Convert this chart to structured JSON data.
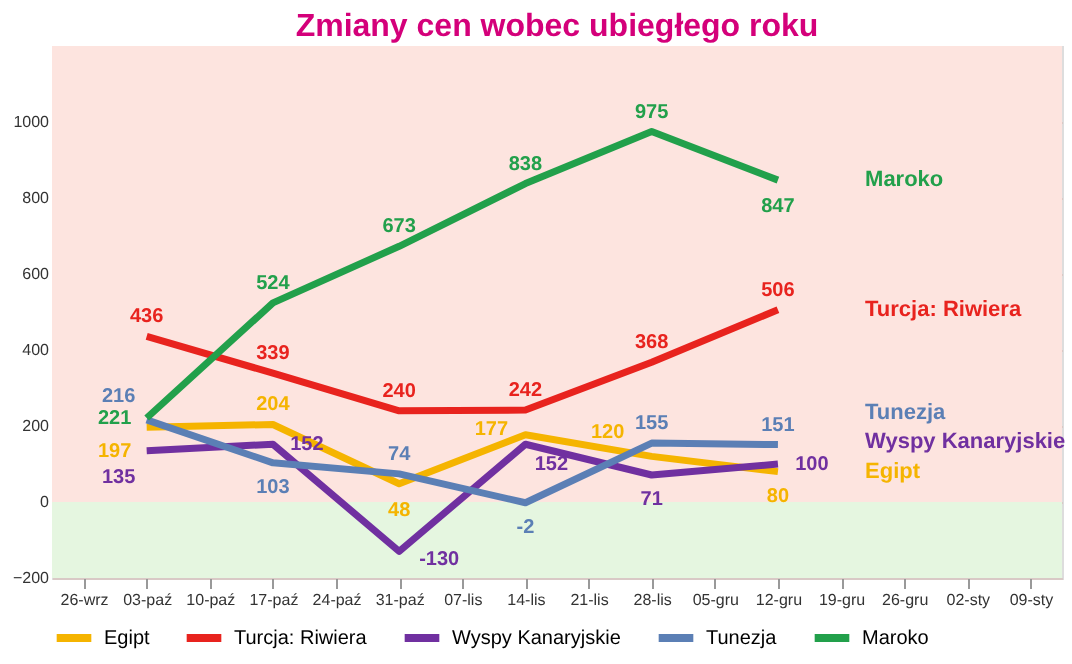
{
  "chart_data": {
    "type": "line",
    "title": "Zmiany cen wobec ubiegłego roku",
    "categories": [
      "26-wrz",
      "03-paź",
      "10-paź",
      "17-paź",
      "24-paź",
      "31-paź",
      "07-lis",
      "14-lis",
      "21-lis",
      "28-lis",
      "05-gru",
      "12-gru",
      "19-gru",
      "26-gru",
      "02-sty",
      "09-sty"
    ],
    "series": [
      {
        "name": "Egipt",
        "color": "#f5b400",
        "values": [
          null,
          197,
          null,
          204,
          null,
          48,
          null,
          177,
          null,
          120,
          null,
          80,
          null,
          null,
          null,
          null
        ]
      },
      {
        "name": "Turcja: Riwiera",
        "color": "#e8231e",
        "values": [
          null,
          436,
          null,
          339,
          null,
          240,
          null,
          242,
          null,
          368,
          null,
          506,
          null,
          null,
          null,
          null
        ]
      },
      {
        "name": "Wyspy Kanaryjskie",
        "color": "#7030a0",
        "values": [
          null,
          135,
          null,
          152,
          null,
          -130,
          null,
          152,
          null,
          71,
          null,
          100,
          null,
          null,
          null,
          null
        ]
      },
      {
        "name": "Tunezja",
        "color": "#5b7fb5",
        "values": [
          null,
          216,
          null,
          103,
          null,
          74,
          null,
          -2,
          null,
          155,
          null,
          151,
          null,
          null,
          null,
          null
        ]
      },
      {
        "name": "Maroko",
        "color": "#22a04b",
        "values": [
          null,
          221,
          null,
          524,
          null,
          673,
          null,
          838,
          null,
          975,
          null,
          847,
          null,
          null,
          null,
          null
        ]
      }
    ],
    "ylim": [
      -200,
      1200
    ],
    "yticks": [
      -200,
      0,
      200,
      400,
      600,
      800,
      1000
    ],
    "bands": [
      {
        "axis": "y",
        "from": 0,
        "to": 1200,
        "color": "#fde4df"
      },
      {
        "axis": "y",
        "from": -200,
        "to": 0,
        "color": "#e5f6e0"
      }
    ],
    "grid": "y",
    "legend": "bottom",
    "data_labels": true,
    "marker": "none",
    "line_style": "solid"
  }
}
